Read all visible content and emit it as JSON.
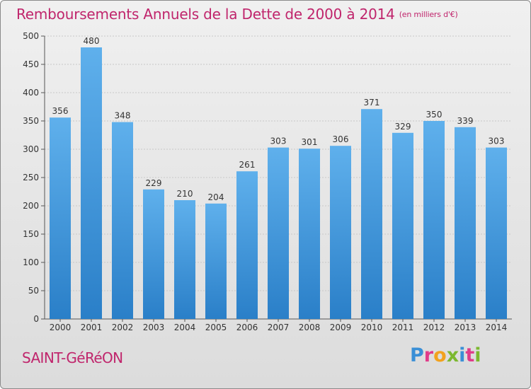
{
  "header": {
    "title": "Remboursements Annuels de la Dette de 2000 à 2014",
    "unit": "(en milliers d'€)"
  },
  "footer": {
    "city": "SAINT-GéRéON",
    "logo_letters": [
      "P",
      "r",
      "o",
      "x",
      "i",
      "t",
      "i"
    ],
    "logo_colors": [
      "#3a8fd6",
      "#e03c8a",
      "#f2a21e",
      "#7cb82f",
      "#3a8fd6",
      "#e03c8a",
      "#7cb82f"
    ]
  },
  "chart_data": {
    "type": "bar",
    "title": "Remboursements Annuels de la Dette de 2000 à 2014",
    "xlabel": "",
    "ylabel": "",
    "ylim": [
      0,
      500
    ],
    "yticks": [
      0,
      50,
      100,
      150,
      200,
      250,
      300,
      350,
      400,
      450,
      500
    ],
    "grid": true,
    "categories": [
      "2000",
      "2001",
      "2002",
      "2003",
      "2004",
      "2005",
      "2006",
      "2007",
      "2008",
      "2009",
      "2010",
      "2011",
      "2012",
      "2013",
      "2014"
    ],
    "values": [
      356,
      480,
      348,
      229,
      210,
      204,
      261,
      303,
      301,
      306,
      371,
      329,
      350,
      339,
      303
    ],
    "colors": {
      "bar_light": "#5fb0ec",
      "bar_dark": "#2a7fc8",
      "grid": "#c8c8c8",
      "axis": "#555555",
      "text": "#333333"
    }
  }
}
